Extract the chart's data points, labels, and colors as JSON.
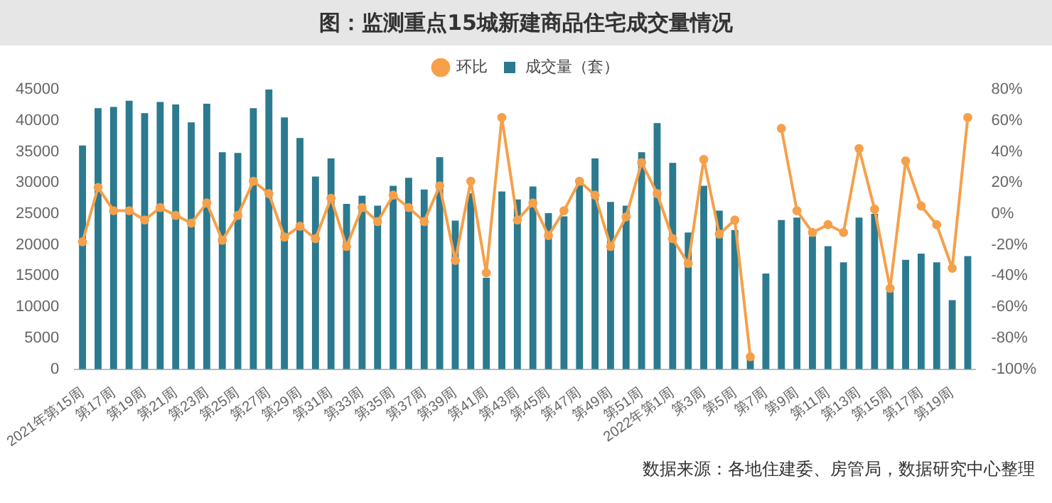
{
  "chart_data": {
    "type": "bar",
    "title": "图：监测重点15城新建商品住宅成交量情况",
    "categories": [
      "2021年第15周",
      null,
      "第17周",
      null,
      "第19周",
      null,
      "第21周",
      null,
      "第23周",
      null,
      "第25周",
      null,
      "第27周",
      null,
      "第29周",
      null,
      "第31周",
      null,
      "第33周",
      null,
      "第35周",
      null,
      "第37周",
      null,
      "第39周",
      null,
      "第41周",
      null,
      "第43周",
      null,
      "第45周",
      null,
      "第47周",
      null,
      "第49周",
      null,
      "第51周",
      null,
      "2022年第1周",
      null,
      "第3周",
      null,
      "第5周",
      null,
      "第7周",
      null,
      "第9周",
      null,
      "第11周",
      null,
      "第13周",
      null,
      "第15周",
      null,
      "第17周",
      null,
      "第19周",
      null
    ],
    "series": [
      {
        "name": "成交量（套）",
        "color": "#2b7a8f",
        "values": [
          36000,
          42000,
          42200,
          43200,
          41200,
          43000,
          42600,
          39700,
          42700,
          34900,
          34800,
          42000,
          45000,
          40500,
          37200,
          31000,
          33900,
          26600,
          27900,
          26300,
          29500,
          30800,
          28900,
          34100,
          23900,
          28300,
          14700,
          28600,
          27300,
          29400,
          25100,
          24600,
          30200,
          33900,
          26900,
          26300,
          34900,
          39600,
          33200,
          22000,
          29500,
          25500,
          22400,
          1800,
          15400,
          24000,
          24400,
          21400,
          19800,
          17200,
          24400,
          25000,
          12800,
          17600,
          18600,
          17200,
          11100,
          18200
        ]
      },
      {
        "name": "环比",
        "type": "line",
        "axis": "y2",
        "color": "#f5a04a",
        "values": [
          -18,
          17,
          2,
          2,
          -4,
          4,
          -1,
          -6,
          7,
          -17,
          -1,
          21,
          13,
          -15,
          -8,
          -16,
          10,
          -21,
          4,
          -5,
          12,
          4,
          -5,
          18,
          -30,
          21,
          -38,
          62,
          -4,
          7,
          -14,
          2,
          21,
          12,
          -21,
          -2,
          33,
          13,
          -16,
          -32,
          35,
          -13,
          -4,
          -92,
          null,
          55,
          2,
          -12,
          -7,
          -12,
          42,
          3,
          -48,
          34,
          5,
          -7,
          -35,
          62
        ]
      }
    ],
    "ylim": [
      0,
      45000
    ],
    "yticks": [
      0,
      5000,
      10000,
      15000,
      20000,
      25000,
      30000,
      35000,
      40000,
      45000
    ],
    "y2lim": [
      -100,
      80
    ],
    "y2ticks": [
      {
        "value": -100,
        "label": "-100%"
      },
      {
        "value": -80,
        "label": "-80%"
      },
      {
        "value": -60,
        "label": "-60%"
      },
      {
        "value": -40,
        "label": "-40%"
      },
      {
        "value": -20,
        "label": "-20%"
      },
      {
        "value": 0,
        "label": "0%"
      },
      {
        "value": 20,
        "label": "20%"
      },
      {
        "value": 40,
        "label": "40%"
      },
      {
        "value": 60,
        "label": "60%"
      },
      {
        "value": 80,
        "label": "80%"
      }
    ],
    "legend": "top",
    "marker": "circle",
    "grid": false,
    "annotations": [
      "数据来源：各地住建委、房管局，数据研究中心整理"
    ]
  }
}
